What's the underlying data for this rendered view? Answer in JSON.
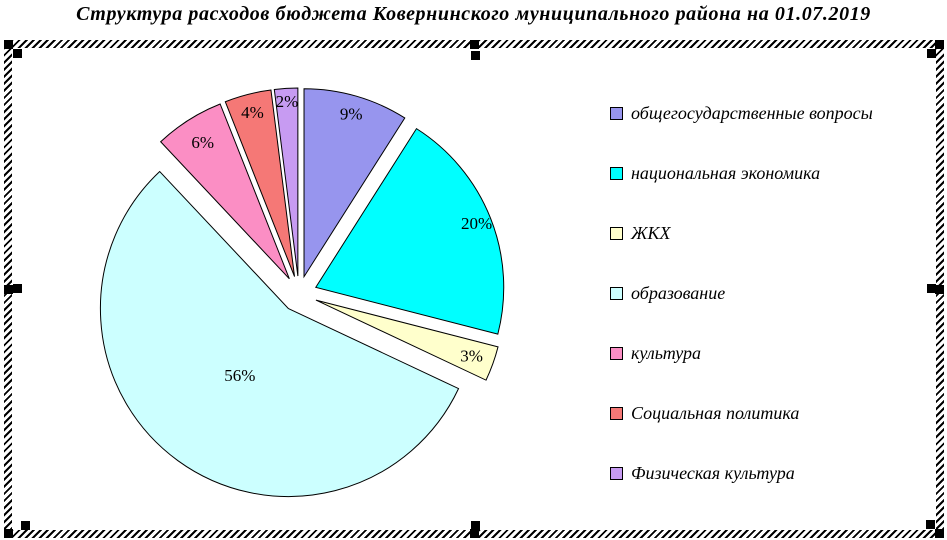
{
  "chart_data": {
    "type": "pie",
    "title": "Структура расходов бюджета Ковернинского муниципального района на 01.07.2019",
    "exploded": true,
    "legend_position": "right",
    "data_labels": "percent",
    "slices": [
      {
        "label": "общегосударственные вопросы",
        "value": 9,
        "data_label": "9%",
        "color": "#9795EE"
      },
      {
        "label": "национальная экономика",
        "value": 20,
        "data_label": "20%",
        "color": "#00FFFF"
      },
      {
        "label": "ЖКХ",
        "value": 3,
        "data_label": "3%",
        "color": "#FFFFCC"
      },
      {
        "label": "образование",
        "value": 56,
        "data_label": "56%",
        "color": "#CCFFFF"
      },
      {
        "label": "культура",
        "value": 6,
        "data_label": "6%",
        "color": "#FB8EC4"
      },
      {
        "label": "Социальная политика",
        "value": 4,
        "data_label": "4%",
        "color": "#F57876"
      },
      {
        "label": "Физическая культура",
        "value": 2,
        "data_label": "2%",
        "color": "#C79BF2"
      }
    ],
    "outline_color": "#000000",
    "background_color": "#FFFFFF"
  },
  "selection": {
    "handle_color": "#000000",
    "outer_handles": [
      "top-left",
      "top-middle",
      "top-right",
      "middle-left",
      "middle-right",
      "bottom-left",
      "bottom-middle",
      "bottom-right"
    ],
    "inner_handles": [
      "top-left",
      "top-middle",
      "top-right",
      "middle-left",
      "middle-right",
      "bottom-left",
      "bottom-middle",
      "bottom-right"
    ]
  }
}
